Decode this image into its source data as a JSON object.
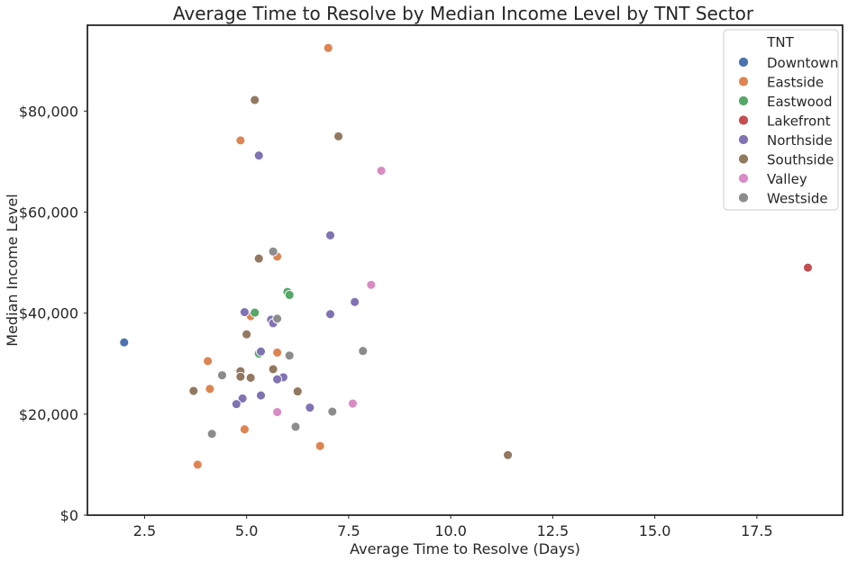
{
  "chart_data": {
    "type": "scatter",
    "title": "Average Time to Resolve by Median Income Level by TNT Sector",
    "xlabel": "Average Time to Resolve (Days)",
    "ylabel": "Median Income Level",
    "xlim": [
      1.1,
      19.6
    ],
    "ylim": [
      0,
      97000
    ],
    "x_ticks": [
      2.5,
      5.0,
      7.5,
      10.0,
      12.5,
      15.0,
      17.5
    ],
    "x_tick_labels": [
      "2.5",
      "5.0",
      "7.5",
      "10.0",
      "12.5",
      "15.0",
      "17.5"
    ],
    "y_ticks": [
      0,
      20000,
      40000,
      60000,
      80000
    ],
    "y_tick_labels": [
      "$0",
      "$20,000",
      "$40,000",
      "$60,000",
      "$80,000"
    ],
    "grid": false,
    "legend": {
      "title": "TNT",
      "placement": "top-right"
    },
    "series": [
      {
        "name": "Downtown",
        "color": "#4c72b0",
        "points": [
          [
            2.0,
            34200
          ]
        ]
      },
      {
        "name": "Eastside",
        "color": "#dd8452",
        "points": [
          [
            7.0,
            92500
          ],
          [
            4.85,
            74200
          ],
          [
            5.75,
            51200
          ],
          [
            5.1,
            39400
          ],
          [
            5.75,
            32200
          ],
          [
            4.05,
            30500
          ],
          [
            4.1,
            25000
          ],
          [
            4.95,
            17000
          ],
          [
            6.8,
            13700
          ],
          [
            3.8,
            10000
          ]
        ]
      },
      {
        "name": "Eastwood",
        "color": "#55a868",
        "points": [
          [
            6.0,
            44200
          ],
          [
            6.05,
            43600
          ],
          [
            5.2,
            40100
          ],
          [
            5.3,
            32000
          ]
        ]
      },
      {
        "name": "Lakefront",
        "color": "#c44e52",
        "points": [
          [
            18.75,
            49000
          ]
        ]
      },
      {
        "name": "Northside",
        "color": "#8172b3",
        "points": [
          [
            5.3,
            71200
          ],
          [
            7.05,
            55400
          ],
          [
            7.65,
            42200
          ],
          [
            4.95,
            40200
          ],
          [
            7.05,
            39800
          ],
          [
            5.6,
            38700
          ],
          [
            5.65,
            38000
          ],
          [
            5.35,
            32400
          ],
          [
            5.9,
            27300
          ],
          [
            5.75,
            26900
          ],
          [
            5.35,
            23700
          ],
          [
            4.9,
            23100
          ],
          [
            4.75,
            22000
          ],
          [
            6.55,
            21300
          ]
        ]
      },
      {
        "name": "Southside",
        "color": "#937860",
        "points": [
          [
            5.2,
            82200
          ],
          [
            7.25,
            75000
          ],
          [
            5.3,
            50800
          ],
          [
            5.0,
            35800
          ],
          [
            5.65,
            28900
          ],
          [
            4.85,
            28500
          ],
          [
            4.85,
            27400
          ],
          [
            5.1,
            27200
          ],
          [
            3.7,
            24600
          ],
          [
            6.25,
            24500
          ],
          [
            11.4,
            11900
          ]
        ]
      },
      {
        "name": "Valley",
        "color": "#da8bc3",
        "points": [
          [
            8.3,
            68200
          ],
          [
            8.05,
            45600
          ],
          [
            7.6,
            22100
          ],
          [
            5.75,
            20400
          ]
        ]
      },
      {
        "name": "Westside",
        "color": "#8c8c8c",
        "points": [
          [
            5.65,
            52200
          ],
          [
            5.75,
            38900
          ],
          [
            7.85,
            32500
          ],
          [
            6.05,
            31600
          ],
          [
            4.4,
            27700
          ],
          [
            7.1,
            20500
          ],
          [
            6.2,
            17500
          ],
          [
            4.15,
            16100
          ]
        ]
      }
    ]
  }
}
